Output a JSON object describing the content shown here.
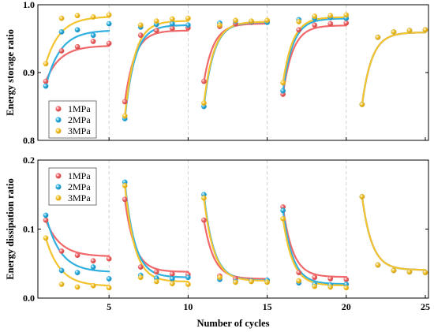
{
  "chart_data": [
    {
      "type": "scatter",
      "ylabel": "Energy storage ratio",
      "ylim": [
        0.8,
        1.0
      ],
      "yticks": [
        "0.8",
        "0.9",
        "1.0"
      ],
      "xlim": [
        0.5,
        25.2
      ],
      "grid": "vertical dashed at 5, 10, 15, 20",
      "legend_position": "left",
      "series": [
        {
          "name": "1MPa",
          "color": "#f0686a",
          "x": [
            1,
            2,
            3,
            4,
            5,
            6,
            7,
            8,
            9,
            10,
            11,
            12,
            13,
            14,
            15,
            16,
            17,
            18,
            19,
            20,
            21,
            22,
            23,
            24,
            25
          ],
          "values": [
            0.887,
            0.932,
            0.938,
            0.946,
            0.943,
            0.857,
            0.955,
            0.962,
            0.965,
            0.966,
            0.887,
            0.968,
            0.972,
            0.974,
            0.975,
            0.868,
            0.963,
            0.97,
            0.972,
            0.973,
            0.853,
            0.952,
            0.96,
            0.962,
            0.963
          ]
        },
        {
          "name": "2MPa",
          "color": "#2fb0e0",
          "x": [
            1,
            2,
            3,
            4,
            5,
            6,
            7,
            8,
            9,
            10,
            11,
            12,
            13,
            14,
            15,
            16,
            17,
            18,
            19,
            20,
            21,
            22,
            23,
            24,
            25
          ],
          "values": [
            0.88,
            0.96,
            0.963,
            0.955,
            0.972,
            0.832,
            0.967,
            0.971,
            0.972,
            0.97,
            0.85,
            0.973,
            0.976,
            0.975,
            0.974,
            0.873,
            0.978,
            0.98,
            0.981,
            0.98,
            0.853,
            0.952,
            0.96,
            0.962,
            0.963
          ]
        },
        {
          "name": "3MPa",
          "color": "#f4c430",
          "x": [
            1,
            2,
            3,
            4,
            5,
            6,
            7,
            8,
            9,
            10,
            11,
            12,
            13,
            14,
            15,
            16,
            17,
            18,
            19,
            20,
            21,
            22,
            23,
            24,
            25
          ],
          "values": [
            0.913,
            0.98,
            0.984,
            0.982,
            0.985,
            0.836,
            0.97,
            0.976,
            0.979,
            0.98,
            0.855,
            0.97,
            0.977,
            0.976,
            0.977,
            0.885,
            0.975,
            0.983,
            0.984,
            0.985,
            0.853,
            0.952,
            0.96,
            0.962,
            0.963
          ]
        }
      ]
    },
    {
      "type": "scatter",
      "ylabel": "Energy dissipation ratio",
      "xlabel": "Number of cycles",
      "ylim": [
        0.0,
        0.2
      ],
      "yticks": [
        "0.0",
        "0.1",
        "0.2"
      ],
      "xlim": [
        0.5,
        25.2
      ],
      "xticks": [
        "5",
        "10",
        "15",
        "20",
        "25"
      ],
      "grid": "vertical dashed at 5, 10, 15, 20",
      "legend_position": "top-left",
      "series": [
        {
          "name": "1MPa",
          "color": "#f0686a",
          "x": [
            1,
            2,
            3,
            4,
            5,
            6,
            7,
            8,
            9,
            10,
            11,
            12,
            13,
            14,
            15,
            16,
            17,
            18,
            19,
            20,
            21,
            22,
            23,
            24,
            25
          ],
          "values": [
            0.113,
            0.068,
            0.062,
            0.054,
            0.057,
            0.143,
            0.045,
            0.038,
            0.035,
            0.034,
            0.113,
            0.032,
            0.028,
            0.026,
            0.025,
            0.132,
            0.037,
            0.03,
            0.028,
            0.027,
            0.147,
            0.048,
            0.04,
            0.038,
            0.037
          ]
        },
        {
          "name": "2MPa",
          "color": "#2fb0e0",
          "x": [
            1,
            2,
            3,
            4,
            5,
            6,
            7,
            8,
            9,
            10,
            11,
            12,
            13,
            14,
            15,
            16,
            17,
            18,
            19,
            20,
            21,
            22,
            23,
            24,
            25
          ],
          "values": [
            0.12,
            0.04,
            0.037,
            0.045,
            0.028,
            0.168,
            0.033,
            0.029,
            0.028,
            0.03,
            0.15,
            0.027,
            0.024,
            0.025,
            0.026,
            0.127,
            0.022,
            0.02,
            0.019,
            0.02,
            0.147,
            0.048,
            0.04,
            0.038,
            0.037
          ]
        },
        {
          "name": "3MPa",
          "color": "#f4c430",
          "x": [
            1,
            2,
            3,
            4,
            5,
            6,
            7,
            8,
            9,
            10,
            11,
            12,
            13,
            14,
            15,
            16,
            17,
            18,
            19,
            20,
            21,
            22,
            23,
            24,
            25
          ],
          "values": [
            0.087,
            0.02,
            0.016,
            0.018,
            0.015,
            0.163,
            0.03,
            0.024,
            0.021,
            0.02,
            0.145,
            0.03,
            0.023,
            0.024,
            0.023,
            0.115,
            0.025,
            0.017,
            0.016,
            0.015,
            0.147,
            0.048,
            0.04,
            0.038,
            0.037
          ]
        }
      ]
    }
  ]
}
